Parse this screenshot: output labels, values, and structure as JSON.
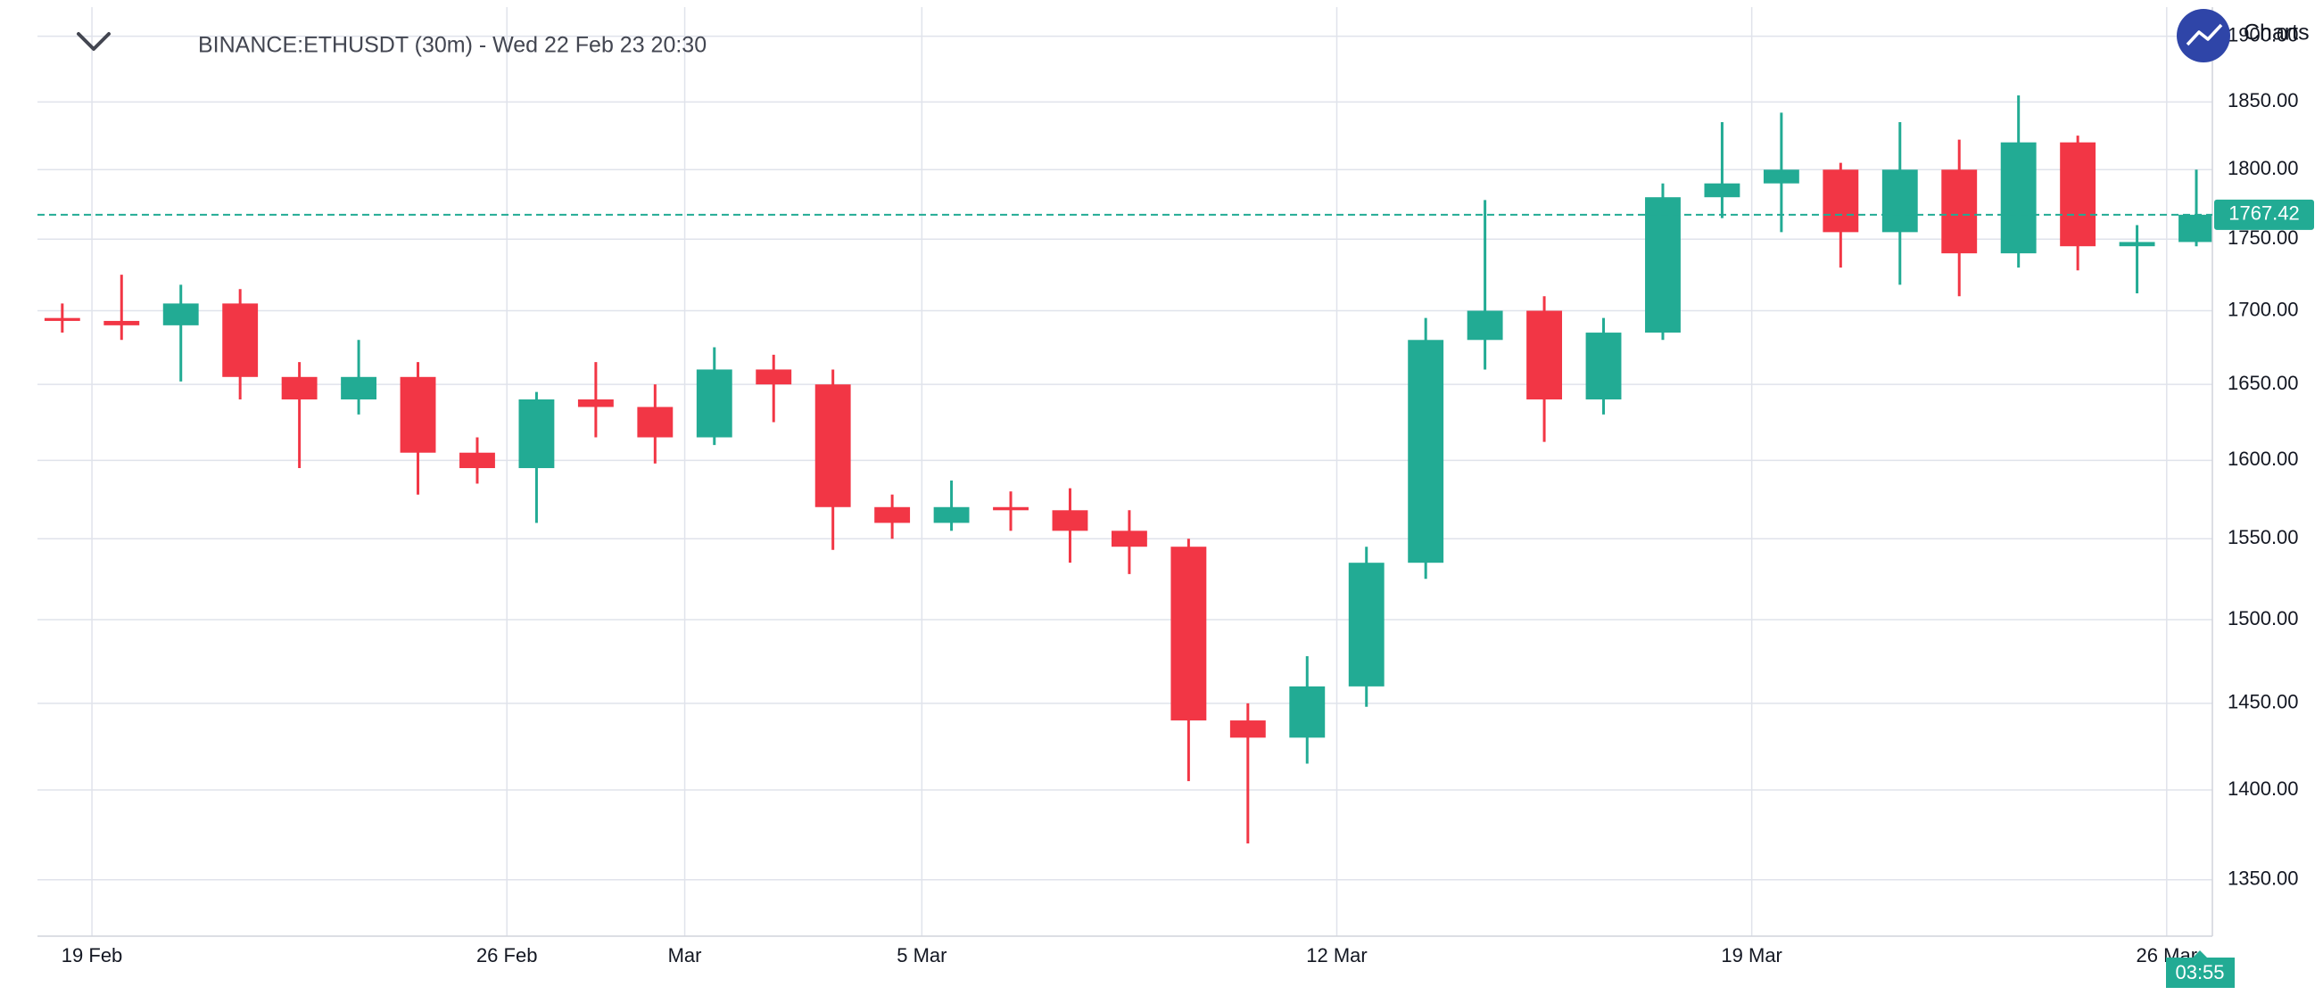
{
  "chart_data": {
    "type": "candlestick",
    "title": "BINANCE:ETHUSDT (30m) - Wed 22 Feb 23 20:30",
    "categories": [
      null,
      "19 Feb",
      null,
      null,
      null,
      null,
      null,
      null,
      "26 Feb",
      null,
      null,
      "Mar",
      null,
      null,
      null,
      "5 Mar",
      null,
      null,
      null,
      null,
      null,
      null,
      "12 Mar",
      null,
      null,
      null,
      null,
      null,
      null,
      "19 Mar",
      null,
      null,
      null,
      null,
      null,
      null,
      "26 Mar"
    ],
    "open": [
      1695,
      1693,
      1690,
      1705,
      1655,
      1640,
      1655,
      1605,
      1595,
      1640,
      1635,
      1615,
      1660,
      1650,
      1570,
      1560,
      1570,
      1568,
      1555,
      1545,
      1440,
      1430,
      1460,
      1535,
      1680,
      1700,
      1640,
      1685,
      1780,
      1790,
      1800,
      1755,
      1800,
      1740,
      1820,
      1745,
      1748
    ],
    "high": [
      1705,
      1725,
      1718,
      1715,
      1665,
      1680,
      1665,
      1615,
      1645,
      1665,
      1650,
      1675,
      1670,
      1660,
      1578,
      1587,
      1580,
      1582,
      1568,
      1550,
      1450,
      1478,
      1545,
      1695,
      1778,
      1710,
      1695,
      1790,
      1835,
      1842,
      1805,
      1835,
      1822,
      1855,
      1825,
      1760,
      1800
    ],
    "low": [
      1685,
      1680,
      1652,
      1640,
      1595,
      1630,
      1578,
      1585,
      1560,
      1615,
      1598,
      1610,
      1625,
      1543,
      1550,
      1555,
      1555,
      1535,
      1528,
      1405,
      1370,
      1415,
      1448,
      1525,
      1660,
      1612,
      1630,
      1680,
      1765,
      1755,
      1730,
      1718,
      1710,
      1730,
      1728,
      1712,
      1745
    ],
    "close": [
      1693,
      1690,
      1705,
      1655,
      1640,
      1655,
      1605,
      1595,
      1640,
      1635,
      1615,
      1660,
      1650,
      1570,
      1560,
      1570,
      1568,
      1555,
      1545,
      1440,
      1430,
      1460,
      1535,
      1680,
      1700,
      1640,
      1685,
      1780,
      1790,
      1800,
      1755,
      1800,
      1740,
      1820,
      1745,
      1748,
      1767.42
    ],
    "up_color": "#22ab94",
    "down_color": "#f23645",
    "ylim": [
      1319.5,
      1922.5
    ],
    "yticks": [
      {
        "value": 1350,
        "label": "1350.00"
      },
      {
        "value": 1400,
        "label": "1400.00"
      },
      {
        "value": 1450,
        "label": "1450.00"
      },
      {
        "value": 1500,
        "label": "1500.00"
      },
      {
        "value": 1550,
        "label": "1550.00"
      },
      {
        "value": 1600,
        "label": "1600.00"
      },
      {
        "value": 1650,
        "label": "1650.00"
      },
      {
        "value": 1700,
        "label": "1700.00"
      },
      {
        "value": 1750,
        "label": "1750.00"
      },
      {
        "value": 1800,
        "label": "1800.00"
      },
      {
        "value": 1850,
        "label": "1850.00"
      },
      {
        "value": 1900,
        "label": "1900.00"
      }
    ],
    "log_scale": true,
    "grid": true
  },
  "countdown": "03:55",
  "brand": "Charts"
}
